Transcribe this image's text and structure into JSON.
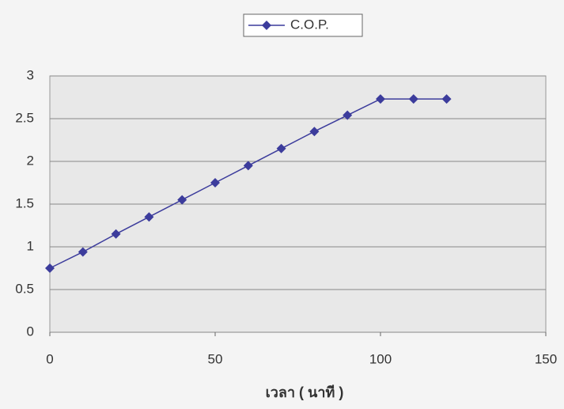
{
  "chart_data": {
    "type": "line",
    "x_label": "เวลา ( นาที )",
    "x": [
      0,
      10,
      20,
      30,
      40,
      50,
      60,
      70,
      80,
      90,
      100,
      110,
      120
    ],
    "series": [
      {
        "name": "C.O.P.",
        "color": "#3c3c9c",
        "values": [
          0.75,
          0.94,
          1.15,
          1.35,
          1.55,
          1.75,
          1.95,
          2.15,
          2.35,
          2.54,
          2.73,
          2.73,
          2.73
        ]
      }
    ],
    "xlim": [
      0,
      150
    ],
    "xticks": [
      0,
      50,
      100,
      150
    ],
    "ylim": [
      0,
      3
    ],
    "yticks": [
      0,
      0.5,
      1,
      1.5,
      2,
      2.5,
      3
    ],
    "grid": true,
    "legend": "top"
  }
}
